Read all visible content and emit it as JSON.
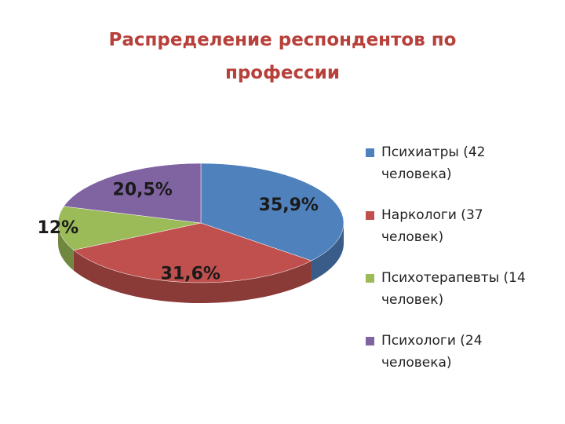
{
  "chart_data": {
    "type": "pie",
    "title": "Распределение респондентов по профессии",
    "categories": [
      "Психиатры (42 человека)",
      "Наркологи (37 человек)",
      "Психотерапевты (14 человек)",
      "Психологи (24 человека)"
    ],
    "values": [
      35.9,
      31.6,
      12,
      20.5
    ],
    "value_labels": [
      "35,9%",
      "31,6%",
      "12%",
      "20,5%"
    ],
    "colors": [
      "#4f81bd",
      "#c0504d",
      "#9bbb59",
      "#8064a2"
    ],
    "legend": "right"
  }
}
